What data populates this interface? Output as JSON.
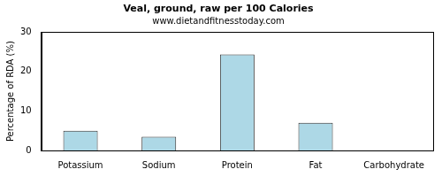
{
  "chart_data": {
    "type": "bar",
    "title": "Veal, ground, raw per 100 Calories",
    "subtitle": "www.dietandfitnesstoday.com",
    "y_label": "Percentage of RDA (%)",
    "categories": [
      "Potassium",
      "Sodium",
      "Protein",
      "Fat",
      "Carbohydrate"
    ],
    "values": [
      5,
      3.5,
      24.3,
      7,
      0
    ],
    "color": "#add8e6",
    "ylim": [
      0,
      30
    ],
    "yticks": [
      0,
      10,
      20,
      30
    ],
    "grid": false
  }
}
